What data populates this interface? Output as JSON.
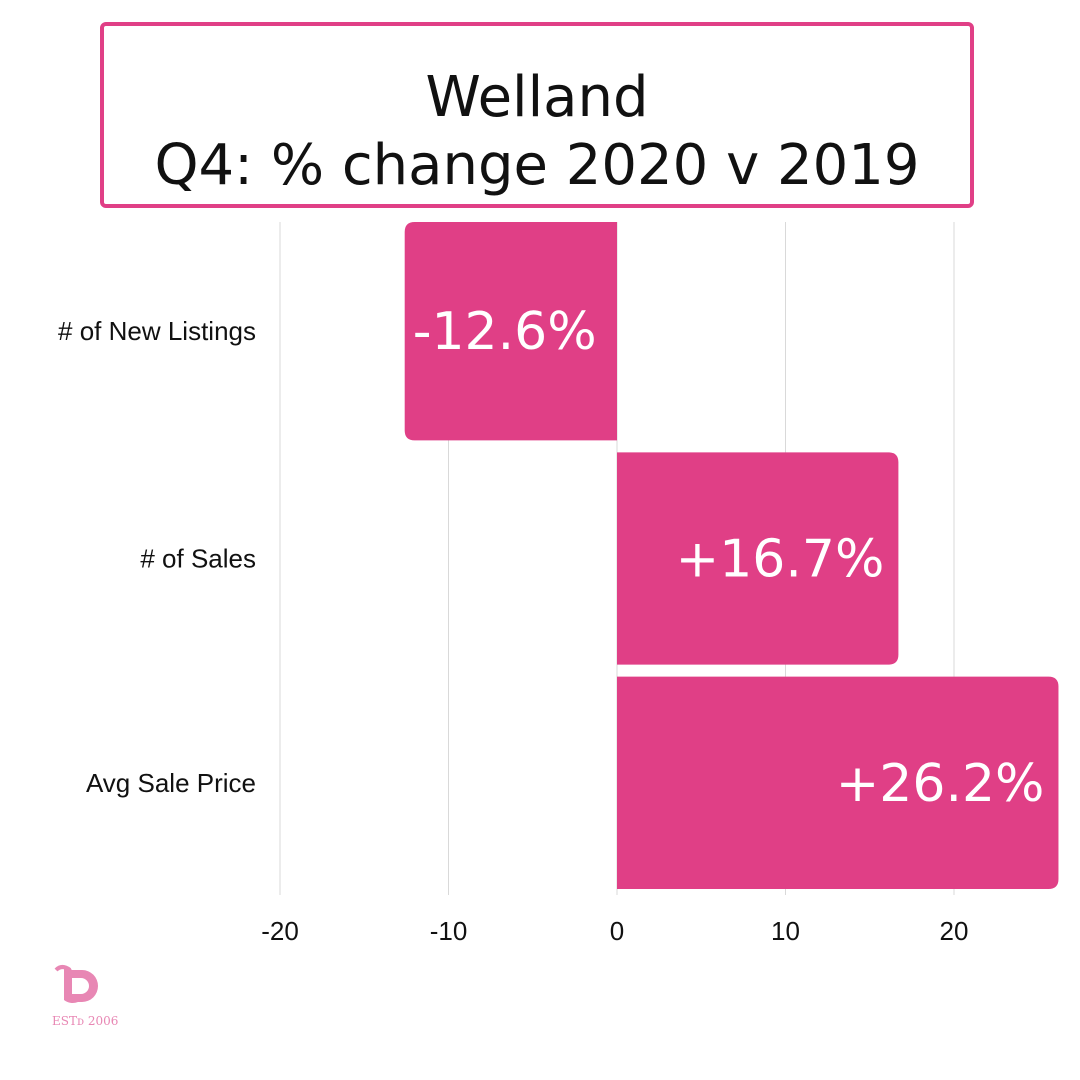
{
  "title": {
    "line1": "Welland",
    "line2": "Q4: % change 2020 v 2019"
  },
  "chart_data": {
    "type": "bar",
    "orientation": "horizontal",
    "categories": [
      "# of New Listings",
      "# of Sales",
      "Avg Sale Price"
    ],
    "values": [
      -12.6,
      16.7,
      26.2
    ],
    "data_labels": [
      "-12.6%",
      "+16.7%",
      "+26.2%"
    ],
    "xlim": [
      -20,
      26.2
    ],
    "xticks": [
      -20,
      -10,
      0,
      10,
      20
    ],
    "xtick_labels": [
      "-20",
      "-10",
      "0",
      "10",
      "20"
    ],
    "grid": true,
    "bar_color": "#e03f86"
  },
  "logo": {
    "mark": "b",
    "text": "ESTᴅ 2006",
    "color": "#e887b4"
  }
}
